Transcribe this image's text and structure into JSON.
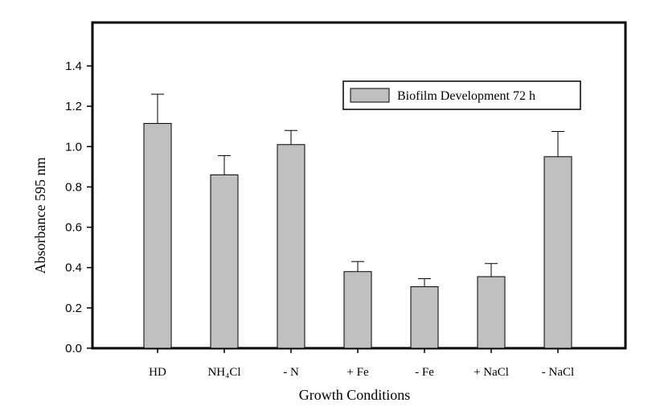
{
  "chart_data": {
    "type": "bar",
    "categories": [
      "HD",
      "NH₄Cl",
      "- N",
      "+ Fe",
      "- Fe",
      "+ NaCl",
      "- NaCl"
    ],
    "series": [
      {
        "name": "Biofilm Development 72 h",
        "values": [
          1.115,
          0.86,
          1.01,
          0.38,
          0.305,
          0.355,
          0.95
        ],
        "errors": [
          0.145,
          0.095,
          0.07,
          0.05,
          0.04,
          0.065,
          0.125
        ],
        "color": "#c0c0c0"
      }
    ],
    "xlabel": "Growth Conditions",
    "ylabel": "Absorbance 595 nm",
    "ylim": [
      0,
      1.4
    ],
    "yticks": [
      "0.0",
      "0.2",
      "0.4",
      "0.6",
      "0.8",
      "1.0",
      "1.2",
      "1.4"
    ],
    "grid": false,
    "legend_position": "top-right"
  }
}
